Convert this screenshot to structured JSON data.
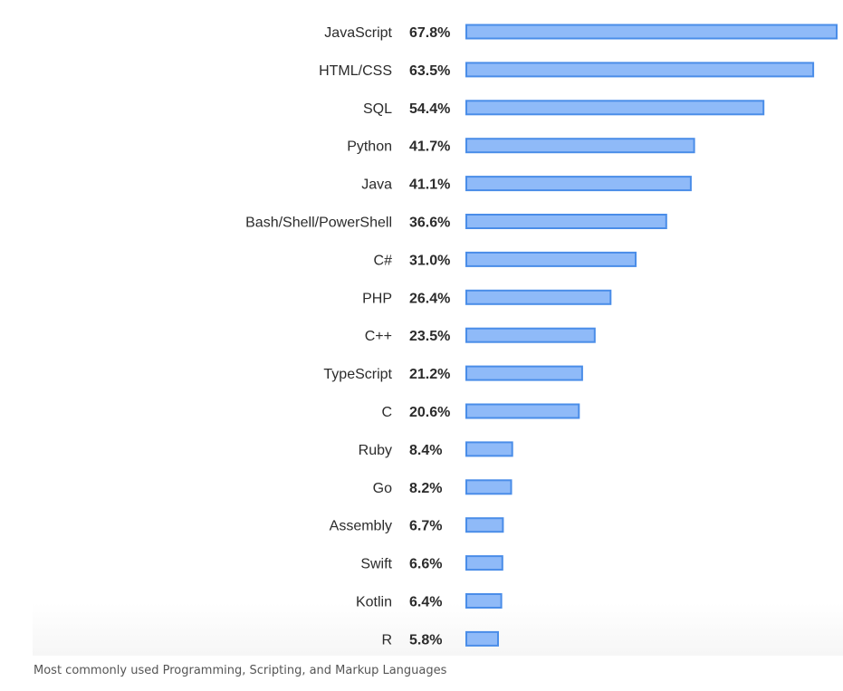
{
  "chart_data": {
    "type": "bar",
    "orientation": "horizontal",
    "categories": [
      "JavaScript",
      "HTML/CSS",
      "SQL",
      "Python",
      "Java",
      "Bash/Shell/PowerShell",
      "C#",
      "PHP",
      "C++",
      "TypeScript",
      "C",
      "Ruby",
      "Go",
      "Assembly",
      "Swift",
      "Kotlin",
      "R"
    ],
    "values": [
      67.8,
      63.5,
      54.4,
      41.7,
      41.1,
      36.6,
      31.0,
      26.4,
      23.5,
      21.2,
      20.6,
      8.4,
      8.2,
      6.7,
      6.6,
      6.4,
      5.8
    ],
    "value_labels": [
      "67.8%",
      "63.5%",
      "54.4%",
      "41.7%",
      "41.1%",
      "36.6%",
      "31.0%",
      "26.4%",
      "23.5%",
      "21.2%",
      "20.6%",
      "8.4%",
      "8.2%",
      "6.7%",
      "6.6%",
      "6.4%",
      "5.8%"
    ],
    "xlim": [
      0,
      67.8
    ],
    "grid": false,
    "bar_fill": "#8fbaf8",
    "bar_stroke": "#4a8de8"
  },
  "caption": "Most commonly used Programming, Scripting, and Markup Languages"
}
